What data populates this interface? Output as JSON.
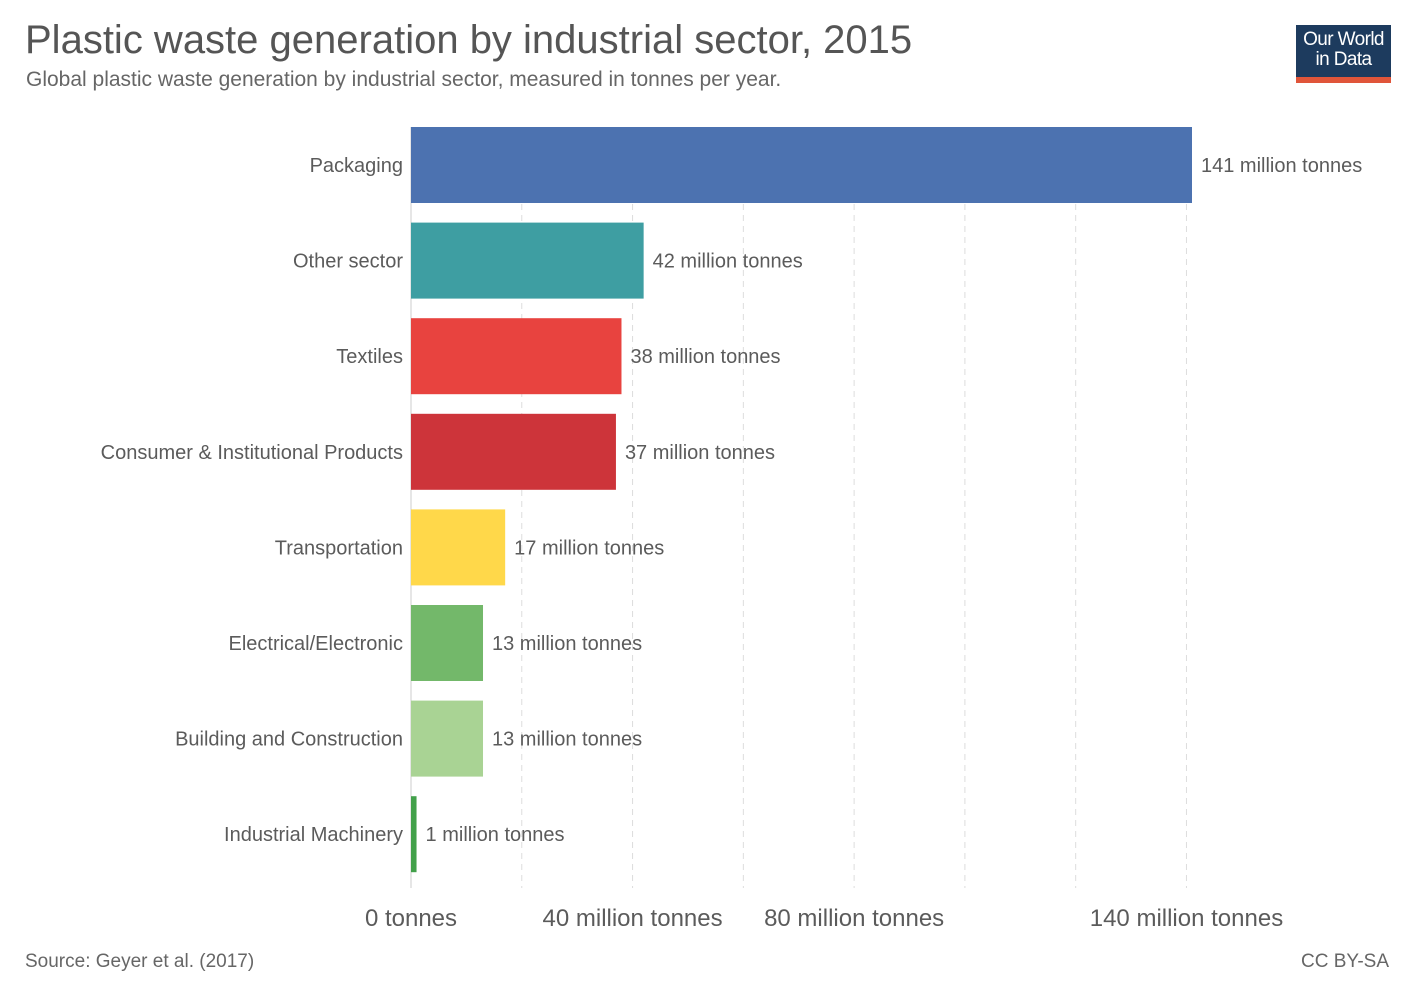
{
  "header": {
    "title": "Plastic waste generation by industrial sector, 2015",
    "subtitle": "Global plastic waste generation by industrial sector, measured in tonnes per year."
  },
  "logo": {
    "line1": "Our World",
    "line2": "in Data"
  },
  "footer": {
    "source": "Source: Geyer et al. (2017)",
    "license": "CC BY-SA"
  },
  "chart_data": {
    "type": "bar",
    "orientation": "horizontal",
    "categories": [
      "Packaging",
      "Other sector",
      "Textiles",
      "Consumer & Institutional Products",
      "Transportation",
      "Electrical/Electronic",
      "Building and Construction",
      "Industrial Machinery"
    ],
    "values": [
      141,
      42,
      38,
      37,
      17,
      13,
      13,
      1
    ],
    "value_labels": [
      "141 million tonnes",
      "42 million tonnes",
      "38 million tonnes",
      "37 million tonnes",
      "17 million tonnes",
      "13 million tonnes",
      "13 million tonnes",
      "1 million tonnes"
    ],
    "colors": [
      "#4c72b0",
      "#3e9ea2",
      "#e8433f",
      "#cd343a",
      "#ffd84a",
      "#73b86a",
      "#a9d394",
      "#42a04a"
    ],
    "unit": "million tonnes",
    "xlim": [
      0,
      141
    ],
    "gridlines": [
      20,
      40,
      60,
      80,
      100,
      120,
      140
    ],
    "x_ticks": [
      {
        "value": 0,
        "label": "0 tonnes"
      },
      {
        "value": 40,
        "label": "40 million tonnes"
      },
      {
        "value": 80,
        "label": "80 million tonnes"
      },
      {
        "value": 140,
        "label": "140 million tonnes"
      }
    ],
    "grid": true,
    "legend": "none"
  }
}
